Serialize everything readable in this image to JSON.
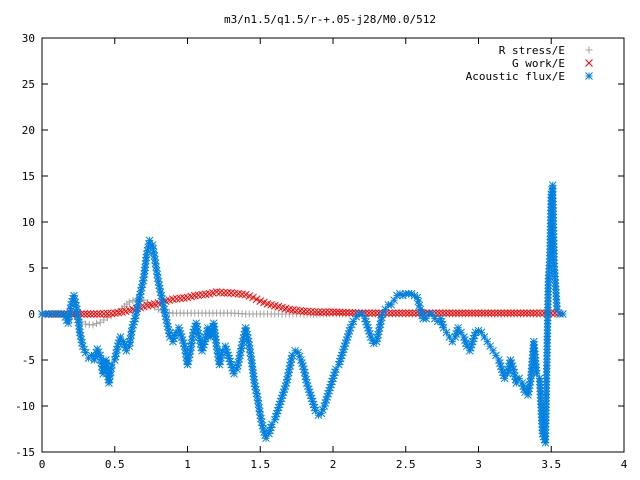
{
  "chart_data": {
    "type": "scatter",
    "title": "m3/n1.5/q1.5/r-+.05-j28/M0.0/512",
    "xlabel": "",
    "ylabel": "",
    "xlim": [
      0,
      4
    ],
    "ylim": [
      -15,
      30
    ],
    "x_ticks": [
      "0",
      "0.5",
      "1",
      "1.5",
      "2",
      "2.5",
      "3",
      "3.5",
      "4"
    ],
    "y_ticks": [
      "-15",
      "-10",
      "-5",
      "0",
      "5",
      "10",
      "15",
      "20",
      "25",
      "30"
    ],
    "grid": false,
    "legend_position": "top-right",
    "series": [
      {
        "name": "R stress/E",
        "marker": "plus",
        "color": "#a0a0a0",
        "points": [
          [
            0.0,
            0.0
          ],
          [
            0.1,
            0.0
          ],
          [
            0.2,
            0.0
          ],
          [
            0.25,
            -0.6
          ],
          [
            0.3,
            -1.1
          ],
          [
            0.35,
            -1.2
          ],
          [
            0.4,
            -0.9
          ],
          [
            0.45,
            -0.4
          ],
          [
            0.5,
            0.0
          ],
          [
            0.55,
            0.6
          ],
          [
            0.6,
            1.3
          ],
          [
            0.65,
            1.6
          ],
          [
            0.7,
            1.5
          ],
          [
            0.75,
            1.0
          ],
          [
            0.8,
            0.5
          ],
          [
            0.85,
            0.2
          ],
          [
            0.9,
            0.1
          ],
          [
            1.0,
            0.1
          ],
          [
            1.1,
            0.1
          ],
          [
            1.2,
            0.1
          ],
          [
            1.3,
            0.1
          ],
          [
            1.4,
            0.0
          ],
          [
            1.5,
            0.0
          ],
          [
            1.6,
            0.0
          ],
          [
            1.7,
            0.0
          ],
          [
            1.8,
            0.0
          ],
          [
            2.0,
            0.0
          ],
          [
            2.2,
            0.0
          ],
          [
            2.5,
            0.0
          ],
          [
            2.8,
            0.0
          ],
          [
            3.0,
            0.0
          ],
          [
            3.2,
            0.0
          ],
          [
            3.4,
            0.0
          ],
          [
            3.55,
            0.0
          ]
        ]
      },
      {
        "name": "G work/E",
        "marker": "cross",
        "color": "#ff0000",
        "points": [
          [
            0.0,
            0.0
          ],
          [
            0.2,
            0.0
          ],
          [
            0.4,
            0.0
          ],
          [
            0.5,
            0.1
          ],
          [
            0.55,
            0.2
          ],
          [
            0.6,
            0.4
          ],
          [
            0.65,
            0.6
          ],
          [
            0.7,
            0.8
          ],
          [
            0.75,
            1.0
          ],
          [
            0.8,
            1.2
          ],
          [
            0.85,
            1.4
          ],
          [
            0.9,
            1.6
          ],
          [
            0.95,
            1.7
          ],
          [
            1.0,
            1.8
          ],
          [
            1.05,
            2.0
          ],
          [
            1.1,
            2.1
          ],
          [
            1.15,
            2.2
          ],
          [
            1.2,
            2.4
          ],
          [
            1.25,
            2.3
          ],
          [
            1.3,
            2.3
          ],
          [
            1.35,
            2.2
          ],
          [
            1.4,
            2.1
          ],
          [
            1.45,
            1.8
          ],
          [
            1.5,
            1.4
          ],
          [
            1.55,
            1.1
          ],
          [
            1.6,
            0.9
          ],
          [
            1.65,
            0.7
          ],
          [
            1.7,
            0.5
          ],
          [
            1.75,
            0.4
          ],
          [
            1.8,
            0.3
          ],
          [
            1.9,
            0.2
          ],
          [
            2.0,
            0.2
          ],
          [
            2.2,
            0.1
          ],
          [
            2.5,
            0.1
          ],
          [
            2.8,
            0.1
          ],
          [
            3.0,
            0.1
          ],
          [
            3.2,
            0.1
          ],
          [
            3.4,
            0.1
          ],
          [
            3.55,
            0.1
          ]
        ]
      },
      {
        "name": "Acoustic flux/E",
        "marker": "star",
        "color": "#0080e0",
        "points": [
          [
            0.0,
            0.0
          ],
          [
            0.05,
            0.0
          ],
          [
            0.1,
            0.0
          ],
          [
            0.15,
            0.0
          ],
          [
            0.18,
            -1.0
          ],
          [
            0.2,
            1.0
          ],
          [
            0.22,
            2.0
          ],
          [
            0.24,
            0.5
          ],
          [
            0.26,
            -2.0
          ],
          [
            0.28,
            -3.5
          ],
          [
            0.3,
            -4.2
          ],
          [
            0.32,
            -4.8
          ],
          [
            0.34,
            -4.5
          ],
          [
            0.36,
            -5.0
          ],
          [
            0.38,
            -3.8
          ],
          [
            0.4,
            -4.5
          ],
          [
            0.42,
            -6.5
          ],
          [
            0.44,
            -5.0
          ],
          [
            0.46,
            -7.5
          ],
          [
            0.48,
            -5.5
          ],
          [
            0.5,
            -5.0
          ],
          [
            0.52,
            -3.5
          ],
          [
            0.54,
            -2.5
          ],
          [
            0.56,
            -3.0
          ],
          [
            0.58,
            -4.0
          ],
          [
            0.6,
            -3.5
          ],
          [
            0.62,
            -1.5
          ],
          [
            0.64,
            -0.5
          ],
          [
            0.66,
            1.0
          ],
          [
            0.68,
            2.5
          ],
          [
            0.7,
            4.0
          ],
          [
            0.72,
            6.5
          ],
          [
            0.74,
            8.0
          ],
          [
            0.76,
            7.5
          ],
          [
            0.78,
            5.5
          ],
          [
            0.8,
            3.5
          ],
          [
            0.82,
            2.0
          ],
          [
            0.84,
            0.5
          ],
          [
            0.86,
            -1.0
          ],
          [
            0.88,
            -2.5
          ],
          [
            0.9,
            -3.0
          ],
          [
            0.92,
            -2.0
          ],
          [
            0.94,
            -1.5
          ],
          [
            0.96,
            -2.5
          ],
          [
            0.98,
            -3.5
          ],
          [
            1.0,
            -5.5
          ],
          [
            1.02,
            -4.0
          ],
          [
            1.04,
            -2.0
          ],
          [
            1.06,
            -1.0
          ],
          [
            1.08,
            -2.5
          ],
          [
            1.1,
            -4.0
          ],
          [
            1.12,
            -3.0
          ],
          [
            1.14,
            -1.5
          ],
          [
            1.16,
            -2.5
          ],
          [
            1.18,
            -1.0
          ],
          [
            1.2,
            -3.5
          ],
          [
            1.22,
            -5.5
          ],
          [
            1.24,
            -4.0
          ],
          [
            1.26,
            -3.5
          ],
          [
            1.28,
            -4.5
          ],
          [
            1.3,
            -5.5
          ],
          [
            1.32,
            -6.5
          ],
          [
            1.34,
            -6.0
          ],
          [
            1.36,
            -4.5
          ],
          [
            1.38,
            -3.0
          ],
          [
            1.4,
            -1.5
          ],
          [
            1.42,
            -3.0
          ],
          [
            1.44,
            -5.0
          ],
          [
            1.46,
            -7.5
          ],
          [
            1.48,
            -9.0
          ],
          [
            1.5,
            -11.0
          ],
          [
            1.52,
            -12.5
          ],
          [
            1.54,
            -13.5
          ],
          [
            1.56,
            -13.0
          ],
          [
            1.58,
            -12.0
          ],
          [
            1.6,
            -11.5
          ],
          [
            1.62,
            -10.5
          ],
          [
            1.64,
            -9.5
          ],
          [
            1.66,
            -8.5
          ],
          [
            1.68,
            -7.5
          ],
          [
            1.7,
            -6.0
          ],
          [
            1.72,
            -4.5
          ],
          [
            1.74,
            -4.0
          ],
          [
            1.76,
            -4.2
          ],
          [
            1.78,
            -5.0
          ],
          [
            1.8,
            -6.0
          ],
          [
            1.82,
            -7.5
          ],
          [
            1.84,
            -8.5
          ],
          [
            1.86,
            -9.5
          ],
          [
            1.88,
            -10.5
          ],
          [
            1.9,
            -11.0
          ],
          [
            1.92,
            -10.8
          ],
          [
            1.94,
            -10.0
          ],
          [
            1.96,
            -9.0
          ],
          [
            1.98,
            -8.0
          ],
          [
            2.0,
            -7.0
          ],
          [
            2.02,
            -6.0
          ],
          [
            2.04,
            -5.5
          ],
          [
            2.06,
            -4.5
          ],
          [
            2.08,
            -3.5
          ],
          [
            2.1,
            -2.5
          ],
          [
            2.12,
            -1.5
          ],
          [
            2.14,
            -0.8
          ],
          [
            2.16,
            -0.3
          ],
          [
            2.18,
            0.0
          ],
          [
            2.2,
            0.0
          ],
          [
            2.22,
            -0.5
          ],
          [
            2.24,
            -1.5
          ],
          [
            2.26,
            -2.5
          ],
          [
            2.28,
            -3.2
          ],
          [
            2.3,
            -3.0
          ],
          [
            2.32,
            -1.5
          ],
          [
            2.34,
            0.0
          ],
          [
            2.36,
            0.5
          ],
          [
            2.38,
            1.0
          ],
          [
            2.4,
            1.0
          ],
          [
            2.42,
            1.5
          ],
          [
            2.44,
            2.0
          ],
          [
            2.46,
            2.2
          ],
          [
            2.48,
            2.0
          ],
          [
            2.5,
            2.2
          ],
          [
            2.52,
            2.2
          ],
          [
            2.54,
            2.2
          ],
          [
            2.56,
            2.0
          ],
          [
            2.58,
            1.8
          ],
          [
            2.6,
            0.5
          ],
          [
            2.62,
            -0.5
          ],
          [
            2.64,
            -0.5
          ],
          [
            2.66,
            0.0
          ],
          [
            2.68,
            0.0
          ],
          [
            2.7,
            -0.5
          ],
          [
            2.72,
            -0.8
          ],
          [
            2.74,
            -0.5
          ],
          [
            2.76,
            -1.5
          ],
          [
            2.78,
            -2.0
          ],
          [
            2.8,
            -2.5
          ],
          [
            2.82,
            -3.0
          ],
          [
            2.84,
            -2.5
          ],
          [
            2.86,
            -1.5
          ],
          [
            2.88,
            -2.0
          ],
          [
            2.9,
            -2.5
          ],
          [
            2.92,
            -3.5
          ],
          [
            2.94,
            -4.0
          ],
          [
            2.96,
            -3.0
          ],
          [
            2.98,
            -2.0
          ],
          [
            3.0,
            -1.8
          ],
          [
            3.02,
            -2.0
          ],
          [
            3.04,
            -2.5
          ],
          [
            3.06,
            -3.0
          ],
          [
            3.08,
            -3.5
          ],
          [
            3.1,
            -4.0
          ],
          [
            3.12,
            -4.5
          ],
          [
            3.14,
            -5.0
          ],
          [
            3.16,
            -6.0
          ],
          [
            3.18,
            -7.0
          ],
          [
            3.2,
            -6.5
          ],
          [
            3.22,
            -5.0
          ],
          [
            3.24,
            -6.0
          ],
          [
            3.26,
            -7.5
          ],
          [
            3.28,
            -7.0
          ],
          [
            3.3,
            -7.5
          ],
          [
            3.32,
            -8.5
          ],
          [
            3.34,
            -8.8
          ],
          [
            3.36,
            -7.0
          ],
          [
            3.38,
            -3.0
          ],
          [
            3.4,
            -6.5
          ],
          [
            3.42,
            -7.0
          ],
          [
            3.44,
            -13.0
          ],
          [
            3.46,
            -14.0
          ],
          [
            3.48,
            3.5
          ],
          [
            3.49,
            6.0
          ],
          [
            3.5,
            13.0
          ],
          [
            3.51,
            14.0
          ],
          [
            3.52,
            5.5
          ],
          [
            3.54,
            0.5
          ],
          [
            3.56,
            0.0
          ],
          [
            3.58,
            0.0
          ]
        ]
      }
    ]
  }
}
